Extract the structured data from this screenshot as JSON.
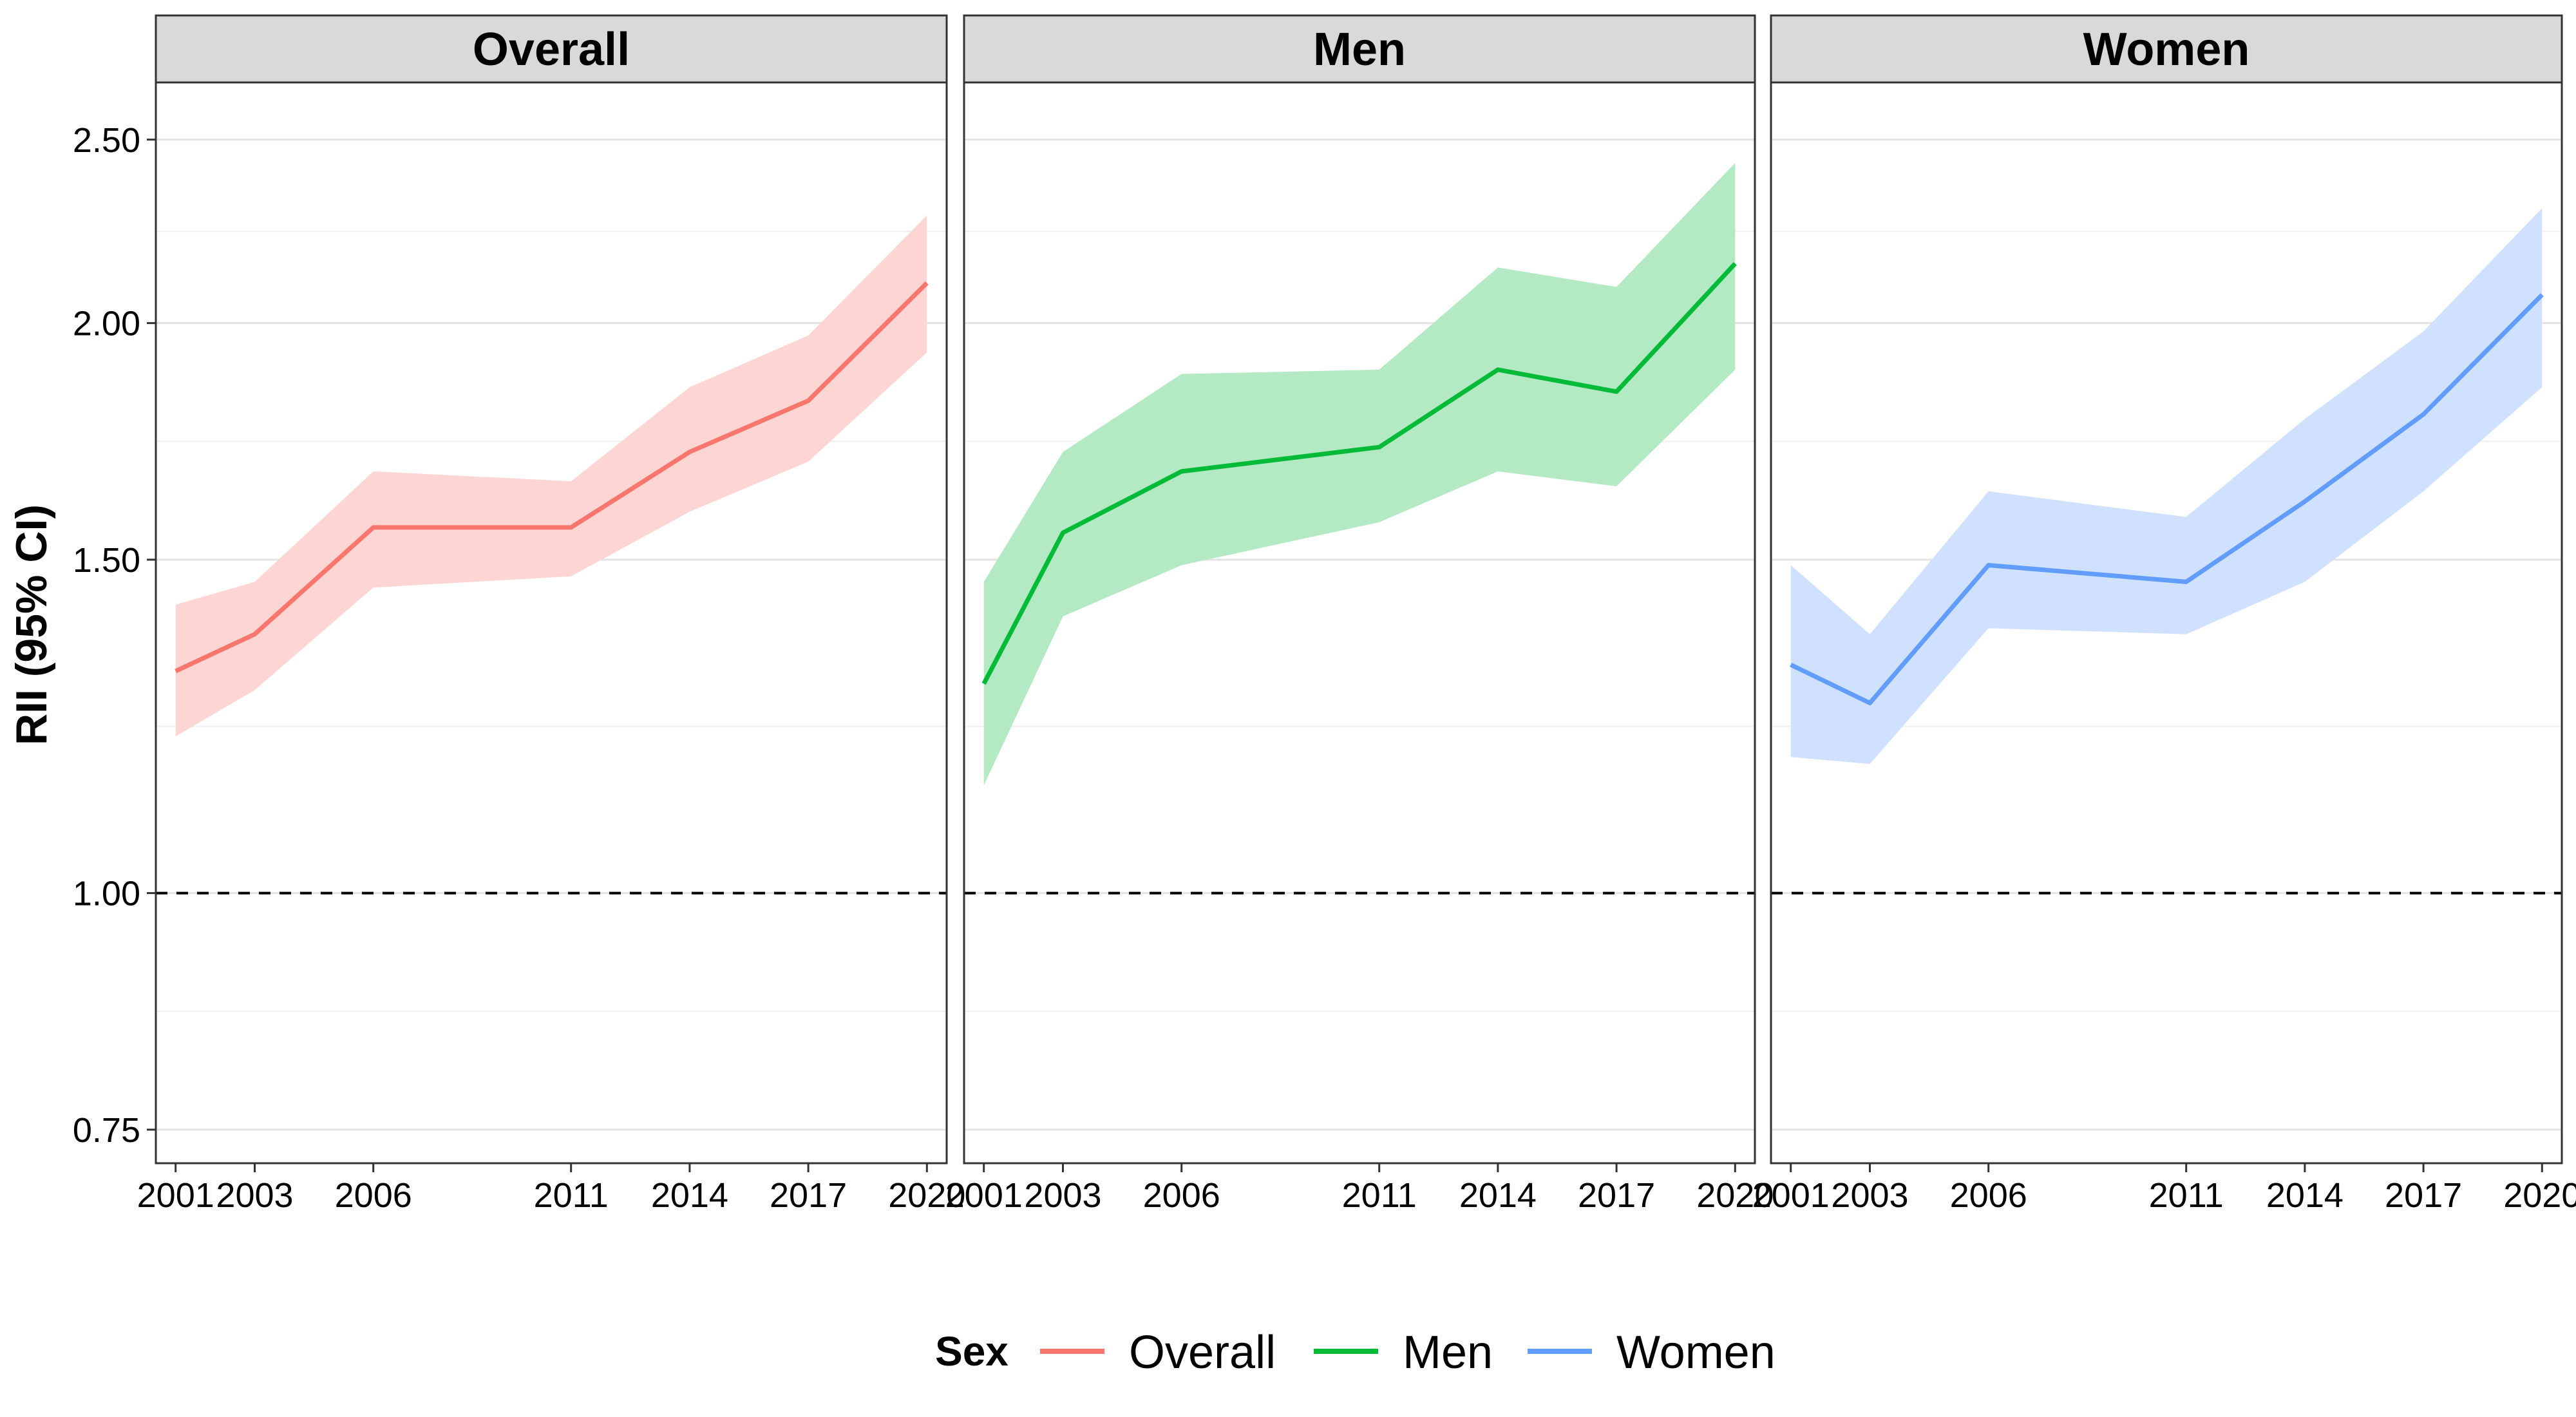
{
  "chart_data": {
    "type": "line",
    "ylabel": "RII (95% CI)",
    "xlabel": "",
    "y_scale": "log",
    "y_ticks": [
      {
        "value": 0.75,
        "label": "0.75"
      },
      {
        "value": 1.0,
        "label": "1.00"
      },
      {
        "value": 1.5,
        "label": "1.50"
      },
      {
        "value": 2.0,
        "label": "2.00"
      },
      {
        "value": 2.5,
        "label": "2.50"
      }
    ],
    "x_ticks": [
      2001,
      2003,
      2006,
      2011,
      2014,
      2017,
      2020
    ],
    "xlim": [
      2000.5,
      2020.5
    ],
    "ylim": [
      0.72,
      2.68
    ],
    "reference_line": {
      "y": 1.0,
      "style": "dashed"
    },
    "grid": true,
    "legend": {
      "title": "Sex",
      "position": "bottom",
      "entries": [
        {
          "label": "Overall",
          "color": "#F8766D"
        },
        {
          "label": "Men",
          "color": "#00BA38"
        },
        {
          "label": "Women",
          "color": "#619CFF"
        }
      ]
    },
    "panels": [
      {
        "strip": "Overall",
        "color": "#F8766D",
        "fill": "#FDD5D2",
        "x": [
          2001,
          2003,
          2006,
          2011,
          2014,
          2017,
          2020
        ],
        "y": [
          1.31,
          1.37,
          1.56,
          1.56,
          1.71,
          1.82,
          2.1
        ],
        "lower": [
          1.21,
          1.28,
          1.45,
          1.47,
          1.59,
          1.69,
          1.93
        ],
        "upper": [
          1.42,
          1.46,
          1.67,
          1.65,
          1.85,
          1.97,
          2.28
        ]
      },
      {
        "strip": "Men",
        "color": "#00BA38",
        "fill": "#B3EAC3",
        "x": [
          2001,
          2003,
          2006,
          2011,
          2014,
          2017,
          2020
        ],
        "y": [
          1.29,
          1.55,
          1.67,
          1.72,
          1.89,
          1.84,
          2.15
        ],
        "lower": [
          1.14,
          1.4,
          1.49,
          1.57,
          1.67,
          1.64,
          1.89
        ],
        "upper": [
          1.46,
          1.71,
          1.88,
          1.89,
          2.14,
          2.09,
          2.43
        ]
      },
      {
        "strip": "Women",
        "color": "#619CFF",
        "fill": "#D0E1FF",
        "x": [
          2001,
          2003,
          2006,
          2011,
          2014,
          2017,
          2020
        ],
        "y": [
          1.32,
          1.26,
          1.49,
          1.46,
          1.61,
          1.79,
          2.07
        ],
        "lower": [
          1.18,
          1.17,
          1.38,
          1.37,
          1.46,
          1.63,
          1.85
        ],
        "upper": [
          1.49,
          1.37,
          1.63,
          1.58,
          1.78,
          1.98,
          2.3
        ]
      }
    ]
  }
}
